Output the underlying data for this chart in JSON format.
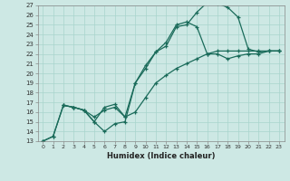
{
  "xlabel": "Humidex (Indice chaleur)",
  "bg_color": "#cde8e4",
  "line_color": "#1a6b5a",
  "grid_color": "#a8d4cc",
  "xlim": [
    -0.5,
    23.5
  ],
  "ylim": [
    13,
    27
  ],
  "xticks": [
    0,
    1,
    2,
    3,
    4,
    5,
    6,
    7,
    8,
    9,
    10,
    11,
    12,
    13,
    14,
    15,
    16,
    17,
    18,
    19,
    20,
    21,
    22,
    23
  ],
  "yticks": [
    13,
    14,
    15,
    16,
    17,
    18,
    19,
    20,
    21,
    22,
    23,
    24,
    25,
    26,
    27
  ],
  "line1_x": [
    0,
    1,
    2,
    3,
    4,
    5,
    6,
    7,
    8,
    9,
    10,
    11,
    12,
    13,
    14,
    15,
    16,
    17,
    18,
    19,
    20,
    21,
    22,
    23
  ],
  "line1_y": [
    13.0,
    13.5,
    16.7,
    16.5,
    16.2,
    15.0,
    14.0,
    14.8,
    15.0,
    19.0,
    20.5,
    22.2,
    22.8,
    24.8,
    25.0,
    26.3,
    27.3,
    27.2,
    26.8,
    25.8,
    22.5,
    22.2,
    22.3,
    22.3
  ],
  "line2_x": [
    2,
    3,
    4,
    5,
    6,
    7,
    8,
    9,
    10,
    11,
    12,
    13,
    14,
    15,
    16,
    17,
    18,
    19,
    20,
    21,
    22,
    23
  ],
  "line2_y": [
    16.7,
    16.5,
    16.2,
    15.5,
    16.2,
    16.5,
    15.5,
    19.0,
    20.8,
    22.2,
    23.2,
    25.0,
    25.3,
    24.8,
    22.0,
    22.3,
    22.3,
    22.3,
    22.3,
    22.3,
    22.3,
    22.3
  ],
  "line3_x": [
    0,
    1,
    2,
    3,
    4,
    5,
    6,
    7,
    8,
    9,
    10,
    11,
    12,
    13,
    14,
    15,
    16,
    17,
    18,
    19,
    20,
    21,
    22,
    23
  ],
  "line3_y": [
    13.0,
    13.5,
    16.7,
    16.5,
    16.2,
    15.0,
    16.5,
    16.8,
    15.5,
    16.0,
    17.5,
    19.0,
    19.8,
    20.5,
    21.0,
    21.5,
    22.0,
    22.0,
    21.5,
    21.8,
    22.0,
    22.0,
    22.3,
    22.3
  ]
}
